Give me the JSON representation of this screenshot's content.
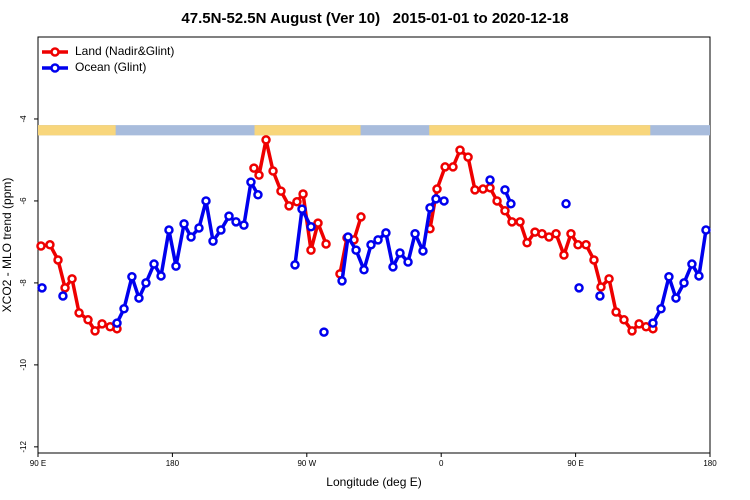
{
  "chart_data": {
    "type": "line",
    "title": "47.5N-52.5N August (Ver 10)   2015-01-01 to 2020-12-18",
    "x_label": "Longitude (deg E)",
    "y_label": "XCO2 - MLO trend (ppm)",
    "xlim": [
      90,
      540
    ],
    "ylim": [
      -12.15,
      -2.0
    ],
    "xticks": [
      {
        "value": 90,
        "label": "90 E"
      },
      180,
      {
        "value": 270,
        "label": "90 W"
      },
      {
        "value": 360,
        "label": "0"
      },
      {
        "value": 450,
        "label": "90 E"
      },
      {
        "value": 540,
        "label": "180"
      }
    ],
    "yticks": [
      -4,
      -6,
      -8,
      -10,
      -12
    ],
    "legend": "top-left",
    "surface_strip": {
      "y": [
        -4.15,
        -4.4
      ],
      "land_color": "#f8d67c",
      "ocean_color": "#a8bcdc",
      "land": [
        [
          90,
          142
        ],
        [
          235,
          306
        ],
        [
          352,
          500
        ]
      ]
    },
    "series": [
      {
        "name": "Land (Nadir&Glint)",
        "color": "#ee0000",
        "x": [
          92.0,
          98.0,
          103.4,
          108.1,
          112.8,
          117.5,
          123.5,
          128.2,
          132.9,
          138.3,
          142.9,
          null,
          234.6,
          238.0,
          242.7,
          247.4,
          252.7,
          258.1,
          263.4,
          267.5,
          272.8,
          277.5,
          282.9,
          null,
          292.2,
          296.9,
          301.6,
          306.3,
          null,
          352.5,
          357.2,
          362.6,
          367.9,
          372.6,
          378.0,
          382.6,
          388.0,
          392.7,
          397.4,
          402.7,
          407.4,
          412.8,
          417.5,
          422.8,
          427.5,
          432.2,
          436.9,
          442.2,
          446.9,
          451.6,
          457.0,
          462.3,
          467.0,
          472.4,
          477.1,
          482.4,
          487.8,
          492.5,
          497.2,
          501.8
        ],
        "values": [
          -7.1,
          -7.07,
          -7.44,
          -8.12,
          -7.9,
          -8.73,
          -8.9,
          -9.17,
          -9.0,
          -9.07,
          -9.12,
          null,
          -5.2,
          -5.37,
          -4.51,
          -5.27,
          -5.76,
          -6.12,
          -6.02,
          -5.83,
          -7.2,
          -6.54,
          -7.05,
          null,
          -7.78,
          -6.9,
          -6.95,
          -6.39,
          null,
          -6.68,
          -5.71,
          -5.17,
          -5.17,
          -4.76,
          -4.93,
          -5.73,
          -5.71,
          -5.68,
          -6.0,
          -6.24,
          -6.51,
          -6.51,
          -7.02,
          -6.76,
          -6.8,
          -6.88,
          -6.8,
          -7.32,
          -6.8,
          -7.07,
          -7.07,
          -7.44,
          -8.1,
          -7.9,
          -8.71,
          -8.9,
          -9.17,
          -9.0,
          -9.07,
          -9.12
        ]
      },
      {
        "name": "Ocean (Glint)",
        "color": "#0000ee",
        "x": [
          92.7,
          null,
          106.7,
          null,
          142.9,
          147.6,
          152.9,
          157.6,
          162.3,
          167.7,
          172.4,
          177.7,
          182.4,
          187.8,
          192.5,
          197.8,
          202.5,
          207.2,
          212.5,
          217.9,
          222.6,
          227.9,
          232.6,
          237.3,
          null,
          262.1,
          266.8,
          272.8,
          null,
          281.5,
          null,
          293.6,
          297.6,
          303.0,
          308.3,
          313.0,
          317.7,
          323.0,
          327.7,
          332.4,
          337.8,
          342.5,
          347.8,
          352.5,
          356.5,
          361.9,
          null,
          392.7,
          null,
          402.7,
          406.7,
          null,
          443.6,
          null,
          452.3,
          null,
          466.3,
          null,
          501.8,
          507.2,
          512.5,
          517.2,
          522.6,
          527.9,
          532.6,
          537.3
        ],
        "values": [
          -8.12,
          null,
          -8.32,
          null,
          -8.98,
          -8.63,
          -7.85,
          -8.37,
          -8.0,
          -7.54,
          -7.83,
          -6.71,
          -7.59,
          -6.56,
          -6.88,
          -6.66,
          -6.0,
          -6.98,
          -6.71,
          -6.37,
          -6.51,
          -6.59,
          -5.54,
          -5.85,
          null,
          -7.56,
          -6.2,
          -6.63,
          null,
          -9.2,
          null,
          -7.95,
          -6.88,
          -7.2,
          -7.68,
          -7.07,
          -6.95,
          -6.78,
          -7.61,
          -7.27,
          -7.49,
          -6.8,
          -7.22,
          -6.17,
          -5.95,
          -6.0,
          null,
          -5.49,
          null,
          -5.73,
          -6.07,
          null,
          -6.07,
          null,
          -8.12,
          null,
          -8.32,
          null,
          -8.98,
          -8.63,
          -7.85,
          -8.37,
          -8.0,
          -7.54,
          -7.83,
          -6.71
        ]
      }
    ]
  }
}
